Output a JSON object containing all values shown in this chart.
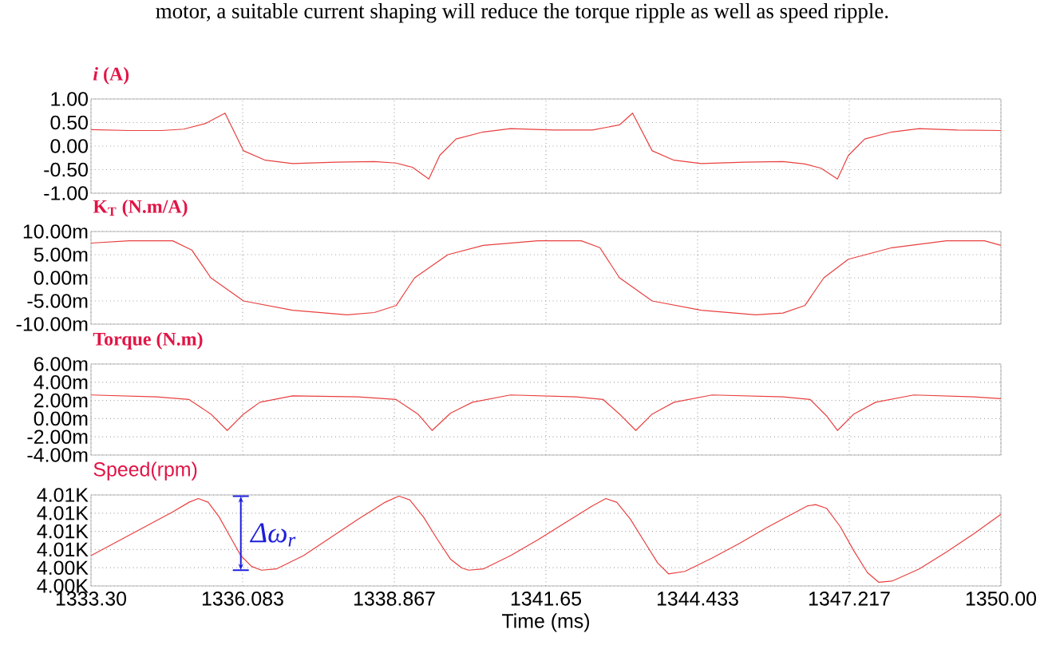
{
  "chart_data": [
    {
      "type": "line",
      "title": "*i* (A)",
      "annotations": [
        "motor, a suitable current shaping will reduce the torque ripple as well as speed ripple."
      ],
      "xlim": [
        1333.3,
        1350.0
      ],
      "xticks": [
        1333.3,
        1336.083,
        1338.867,
        1341.65,
        1344.433,
        1347.217,
        1350.0
      ],
      "ylim": [
        -1,
        1
      ],
      "yticks": [
        {
          "value": -1,
          "label": "-1.00"
        },
        {
          "value": -0.5,
          "label": "-0.50"
        },
        {
          "value": 0,
          "label": "0.00"
        },
        {
          "value": 0.5,
          "label": "0.50"
        },
        {
          "value": 1,
          "label": "1.00"
        }
      ],
      "grid": true,
      "tick_labels": "y",
      "marker": "none",
      "line_style": "solid",
      "series": [
        {
          "color": "#e8403f",
          "x": [
            1333.3,
            1334.0,
            1334.6,
            1335.0,
            1335.4,
            1335.76,
            1336.1,
            1336.5,
            1337.0,
            1337.8,
            1338.5,
            1338.9,
            1339.2,
            1339.5,
            1339.7,
            1340.0,
            1340.5,
            1341.0,
            1341.8,
            1342.5,
            1343.0,
            1343.24,
            1343.6,
            1344.0,
            1344.5,
            1345.3,
            1346.0,
            1346.4,
            1346.7,
            1347.0,
            1347.2,
            1347.5,
            1348.0,
            1348.5,
            1349.2,
            1350.0
          ],
          "values": [
            0.35,
            0.33,
            0.33,
            0.36,
            0.48,
            0.7,
            -0.1,
            -0.3,
            -0.37,
            -0.34,
            -0.33,
            -0.36,
            -0.45,
            -0.7,
            -0.2,
            0.15,
            0.3,
            0.37,
            0.34,
            0.34,
            0.45,
            0.7,
            -0.1,
            -0.3,
            -0.37,
            -0.34,
            -0.33,
            -0.38,
            -0.47,
            -0.7,
            -0.2,
            0.15,
            0.3,
            0.37,
            0.34,
            0.33
          ]
        }
      ]
    },
    {
      "type": "line",
      "title": "K$_{T}$ (N.m/A)",
      "xlim": [
        1333.3,
        1350.0
      ],
      "xticks": [
        1333.3,
        1336.083,
        1338.867,
        1341.65,
        1344.433,
        1347.217,
        1350.0
      ],
      "ylim": [
        -10,
        10
      ],
      "yticks": [
        {
          "value": -10,
          "label": "-10.00m"
        },
        {
          "value": -5,
          "label": "-5.00m"
        },
        {
          "value": 0,
          "label": "0.00m"
        },
        {
          "value": 5,
          "label": "5.00m"
        },
        {
          "value": 10,
          "label": "10.00m"
        }
      ],
      "grid": true,
      "tick_labels": "y",
      "marker": "none",
      "line_style": "solid",
      "series": [
        {
          "color": "#e8403f",
          "x": [
            1333.3,
            1334.0,
            1334.8,
            1335.15,
            1335.5,
            1336.1,
            1337.0,
            1338.0,
            1338.5,
            1338.9,
            1339.24,
            1339.85,
            1340.5,
            1341.5,
            1342.3,
            1342.64,
            1343.0,
            1343.6,
            1344.5,
            1345.5,
            1346.0,
            1346.4,
            1346.75,
            1347.2,
            1348.0,
            1349.0,
            1349.7,
            1350.0
          ],
          "values": [
            7.5,
            8,
            8,
            6,
            0,
            -5,
            -7,
            -8,
            -7.5,
            -6,
            0,
            5,
            7,
            8,
            8,
            6.5,
            0,
            -5,
            -7,
            -8,
            -7.6,
            -6,
            0,
            4,
            6.5,
            8,
            8,
            7
          ]
        }
      ]
    },
    {
      "type": "line",
      "title": "Torque (N.m)",
      "xlim": [
        1333.3,
        1350.0
      ],
      "xticks": [
        1333.3,
        1336.083,
        1338.867,
        1341.65,
        1344.433,
        1347.217,
        1350.0
      ],
      "ylim": [
        -4,
        6
      ],
      "yticks": [
        {
          "value": -4,
          "label": "-4.00m"
        },
        {
          "value": -2,
          "label": "-2.00m"
        },
        {
          "value": 0,
          "label": "0.00m"
        },
        {
          "value": 2,
          "label": "2.00m"
        },
        {
          "value": 4,
          "label": "4.00m"
        },
        {
          "value": 6,
          "label": "6.00m"
        }
      ],
      "grid": true,
      "tick_labels": "y",
      "marker": "none",
      "line_style": "solid",
      "series": [
        {
          "color": "#e8403f",
          "x": [
            1333.3,
            1334.5,
            1335.1,
            1335.5,
            1335.8,
            1336.1,
            1336.4,
            1337.0,
            1338.2,
            1338.9,
            1339.3,
            1339.56,
            1339.9,
            1340.3,
            1341.0,
            1342.2,
            1342.7,
            1343.0,
            1343.3,
            1343.6,
            1344.0,
            1344.7,
            1346.0,
            1346.5,
            1346.8,
            1347.0,
            1347.3,
            1347.7,
            1348.4,
            1349.5,
            1350.0
          ],
          "values": [
            2.6,
            2.4,
            2.1,
            0.5,
            -1.3,
            0.5,
            1.8,
            2.5,
            2.4,
            2.1,
            0.5,
            -1.3,
            0.6,
            1.8,
            2.6,
            2.4,
            2.1,
            0.5,
            -1.3,
            0.5,
            1.8,
            2.6,
            2.4,
            2.1,
            0.3,
            -1.3,
            0.5,
            1.8,
            2.6,
            2.4,
            2.2
          ]
        }
      ]
    },
    {
      "type": "line",
      "title": "Speed(rpm)",
      "xlabel": "Time (ms)",
      "annotations": [
        {
          "text": "Δω$_{r}$",
          "x": 1336.05,
          "y": 4005.0
        }
      ],
      "xlim": [
        1333.3,
        1350.0
      ],
      "xticks": [
        {
          "value": 1333.3,
          "label": "1333.30"
        },
        {
          "value": 1336.083,
          "label": "1336.083"
        },
        {
          "value": 1338.867,
          "label": "1338.867"
        },
        {
          "value": 1341.65,
          "label": "1341.65"
        },
        {
          "value": 1344.433,
          "label": "1344.433"
        },
        {
          "value": 1347.217,
          "label": "1347.217"
        },
        {
          "value": 1350.0,
          "label": "1350.00"
        }
      ],
      "ylim": [
        4002.5,
        4010
      ],
      "yticks": [
        {
          "value": 4002.5,
          "label": "4.00K"
        },
        {
          "value": 4004,
          "label": "4.00K"
        },
        {
          "value": 4005.5,
          "label": "4.01K"
        },
        {
          "value": 4007,
          "label": "4.01K"
        },
        {
          "value": 4008.5,
          "label": "4.01K"
        },
        {
          "value": 4010,
          "label": "4.01K"
        }
      ],
      "grid": true,
      "marker": "none",
      "line_style": "solid",
      "series": [
        {
          "color": "#e8403f",
          "x": [
            1333.3,
            1333.8,
            1334.3,
            1334.8,
            1335.1,
            1335.27,
            1335.45,
            1335.65,
            1335.85,
            1336.05,
            1336.25,
            1336.43,
            1336.7,
            1337.2,
            1337.7,
            1338.2,
            1338.7,
            1338.95,
            1339.15,
            1339.4,
            1339.65,
            1339.9,
            1340.1,
            1340.23,
            1340.5,
            1341.0,
            1341.5,
            1342.0,
            1342.5,
            1342.75,
            1342.95,
            1343.2,
            1343.45,
            1343.7,
            1343.9,
            1344.2,
            1344.7,
            1345.2,
            1345.7,
            1346.2,
            1346.45,
            1346.6,
            1346.8,
            1347.05,
            1347.3,
            1347.55,
            1347.76,
            1348.0,
            1348.5,
            1349.0,
            1349.5,
            1350.0
          ],
          "values": [
            4005.0,
            4006.2,
            4007.4,
            4008.6,
            4009.4,
            4009.7,
            4009.4,
            4008.2,
            4006.6,
            4005.0,
            4004.1,
            4003.8,
            4003.9,
            4005.0,
            4006.5,
            4008.0,
            4009.4,
            4009.9,
            4009.6,
            4008.2,
            4006.4,
            4004.7,
            4004.0,
            4003.8,
            4003.9,
            4005.0,
            4006.3,
            4007.7,
            4009.1,
            4009.7,
            4009.4,
            4008.0,
            4006.2,
            4004.4,
            4003.5,
            4003.7,
            4004.8,
            4006.0,
            4007.3,
            4008.5,
            4009.1,
            4009.2,
            4008.9,
            4007.4,
            4005.4,
            4003.6,
            4002.8,
            4002.9,
            4003.9,
            4005.3,
            4006.8,
            4008.4
          ]
        }
      ]
    }
  ]
}
